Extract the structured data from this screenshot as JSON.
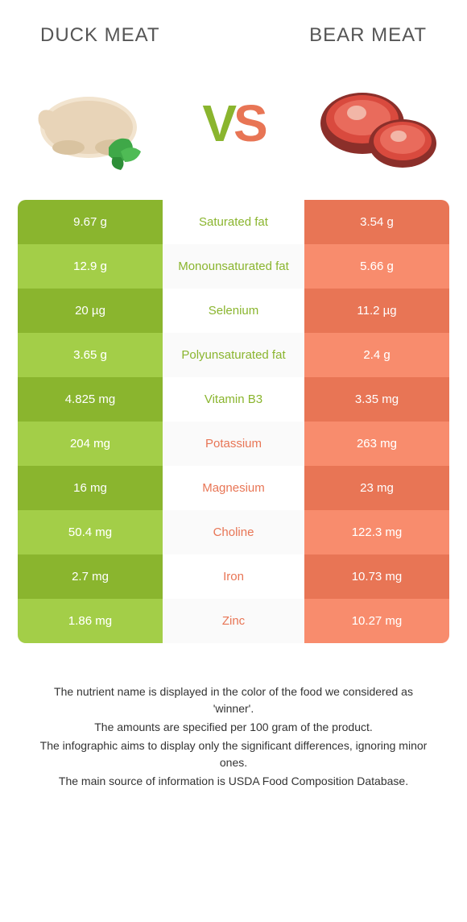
{
  "header": {
    "left": "DUCK MEAT",
    "right": "BEAR MEAT"
  },
  "vs": {
    "v": "V",
    "s": "S"
  },
  "colors": {
    "left": "#8ab52e",
    "right": "#e87555",
    "left_alt": "#97bf43",
    "right_alt": "#ea8467"
  },
  "rows": [
    {
      "left": "9.67 g",
      "label": "Saturated fat",
      "right": "3.54 g",
      "winner": "left"
    },
    {
      "left": "12.9 g",
      "label": "Monounsaturated fat",
      "right": "5.66 g",
      "winner": "left"
    },
    {
      "left": "20 µg",
      "label": "Selenium",
      "right": "11.2 µg",
      "winner": "left"
    },
    {
      "left": "3.65 g",
      "label": "Polyunsaturated fat",
      "right": "2.4 g",
      "winner": "left"
    },
    {
      "left": "4.825 mg",
      "label": "Vitamin B3",
      "right": "3.35 mg",
      "winner": "left"
    },
    {
      "left": "204 mg",
      "label": "Potassium",
      "right": "263 mg",
      "winner": "right"
    },
    {
      "left": "16 mg",
      "label": "Magnesium",
      "right": "23 mg",
      "winner": "right"
    },
    {
      "left": "50.4 mg",
      "label": "Choline",
      "right": "122.3 mg",
      "winner": "right"
    },
    {
      "left": "2.7 mg",
      "label": "Iron",
      "right": "10.73 mg",
      "winner": "right"
    },
    {
      "left": "1.86 mg",
      "label": "Zinc",
      "right": "10.27 mg",
      "winner": "right"
    }
  ],
  "footer": [
    "The nutrient name is displayed in the color of the food we considered as 'winner'.",
    "The amounts are specified per 100 gram of the product.",
    "The infographic aims to display only the significant differences, ignoring minor ones.",
    "The main source of information is USDA Food Composition Database."
  ]
}
